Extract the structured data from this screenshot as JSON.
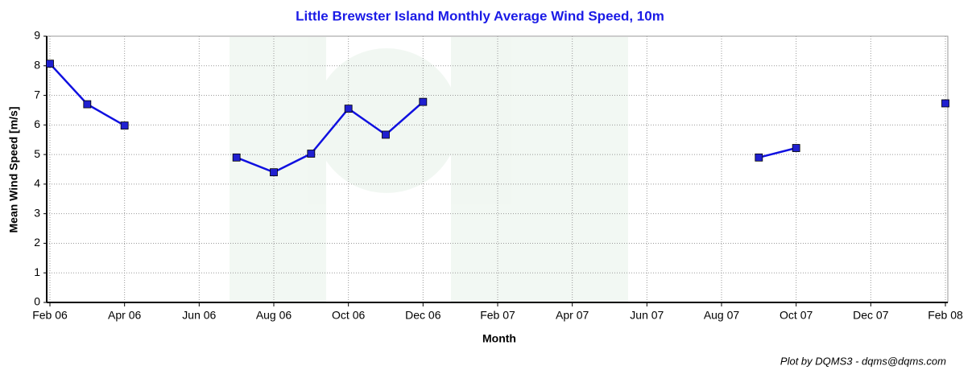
{
  "chart_data": {
    "type": "line",
    "title": "Little Brewster Island Monthly Average Wind Speed, 10m",
    "x_label": "Month",
    "y_label": "Mean Wind Speed [m/s]",
    "credit": "Plot by DQMS3 - dqms@dqms.com",
    "x": [
      "2006-02",
      "2006-03",
      "2006-04",
      "2006-05",
      "2006-06",
      "2006-07",
      "2006-08",
      "2006-09",
      "2006-10",
      "2006-11",
      "2006-12",
      "2007-01",
      "2007-02",
      "2007-03",
      "2007-04",
      "2007-05",
      "2007-06",
      "2007-07",
      "2007-08",
      "2007-09",
      "2007-10",
      "2007-11",
      "2007-12",
      "2008-01",
      "2008-02"
    ],
    "values": [
      8.07,
      6.7,
      5.98,
      null,
      null,
      4.9,
      4.4,
      5.03,
      6.55,
      5.67,
      6.78,
      null,
      null,
      null,
      null,
      null,
      null,
      null,
      null,
      4.9,
      5.22,
      null,
      null,
      null,
      6.73
    ],
    "color": "#1010e0",
    "marker_color": "#2020d0",
    "xlim": [
      "2006-02",
      "2008-02"
    ],
    "xticks": [
      {
        "value": "2006-02",
        "label": "Feb 06"
      },
      {
        "value": "2006-04",
        "label": "Apr 06"
      },
      {
        "value": "2006-06",
        "label": "Jun 06"
      },
      {
        "value": "2006-08",
        "label": "Aug 06"
      },
      {
        "value": "2006-10",
        "label": "Oct 06"
      },
      {
        "value": "2006-12",
        "label": "Dec 06"
      },
      {
        "value": "2007-02",
        "label": "Feb 07"
      },
      {
        "value": "2007-04",
        "label": "Apr 07"
      },
      {
        "value": "2007-06",
        "label": "Jun 07"
      },
      {
        "value": "2007-08",
        "label": "Aug 07"
      },
      {
        "value": "2007-10",
        "label": "Oct 07"
      },
      {
        "value": "2007-12",
        "label": "Dec 07"
      },
      {
        "value": "2008-02",
        "label": "Feb 08"
      }
    ],
    "ylim": [
      0,
      9
    ],
    "yticks": [
      0,
      1,
      2,
      3,
      4,
      5,
      6,
      7,
      8,
      9
    ],
    "grid": true
  }
}
